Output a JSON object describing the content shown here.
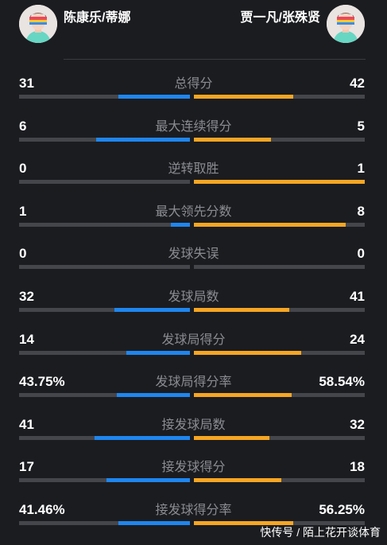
{
  "teams": {
    "left": {
      "name": "陈康乐/蒂娜",
      "avatar_icon": "player-avatar-icon"
    },
    "right": {
      "name": "贾一凡/张殊贤",
      "avatar_icon": "player-avatar-icon"
    }
  },
  "colors": {
    "left_bar": "#1f86ef",
    "right_bar": "#f6a623",
    "track": "#45464b"
  },
  "stats": [
    {
      "label": "总得分",
      "left": "31",
      "right": "42",
      "left_share": 0.42,
      "right_share": 0.58
    },
    {
      "label": "最大连续得分",
      "left": "6",
      "right": "5",
      "left_share": 0.55,
      "right_share": 0.45
    },
    {
      "label": "逆转取胜",
      "left": "0",
      "right": "1",
      "left_share": 0.0,
      "right_share": 1.0
    },
    {
      "label": "最大领先分数",
      "left": "1",
      "right": "8",
      "left_share": 0.11,
      "right_share": 0.89
    },
    {
      "label": "发球失误",
      "left": "0",
      "right": "0",
      "left_share": 0.0,
      "right_share": 0.0
    },
    {
      "label": "发球局数",
      "left": "32",
      "right": "41",
      "left_share": 0.44,
      "right_share": 0.56
    },
    {
      "label": "发球局得分",
      "left": "14",
      "right": "24",
      "left_share": 0.37,
      "right_share": 0.63
    },
    {
      "label": "发球局得分率",
      "left": "43.75%",
      "right": "58.54%",
      "left_share": 0.43,
      "right_share": 0.57
    },
    {
      "label": "接发球局数",
      "left": "41",
      "right": "32",
      "left_share": 0.56,
      "right_share": 0.44
    },
    {
      "label": "接发球得分",
      "left": "17",
      "right": "18",
      "left_share": 0.49,
      "right_share": 0.51
    },
    {
      "label": "接发球得分率",
      "left": "41.46%",
      "right": "56.25%",
      "left_share": 0.42,
      "right_share": 0.58
    }
  ],
  "watermark": "快传号 / 陌上花开谈体育"
}
